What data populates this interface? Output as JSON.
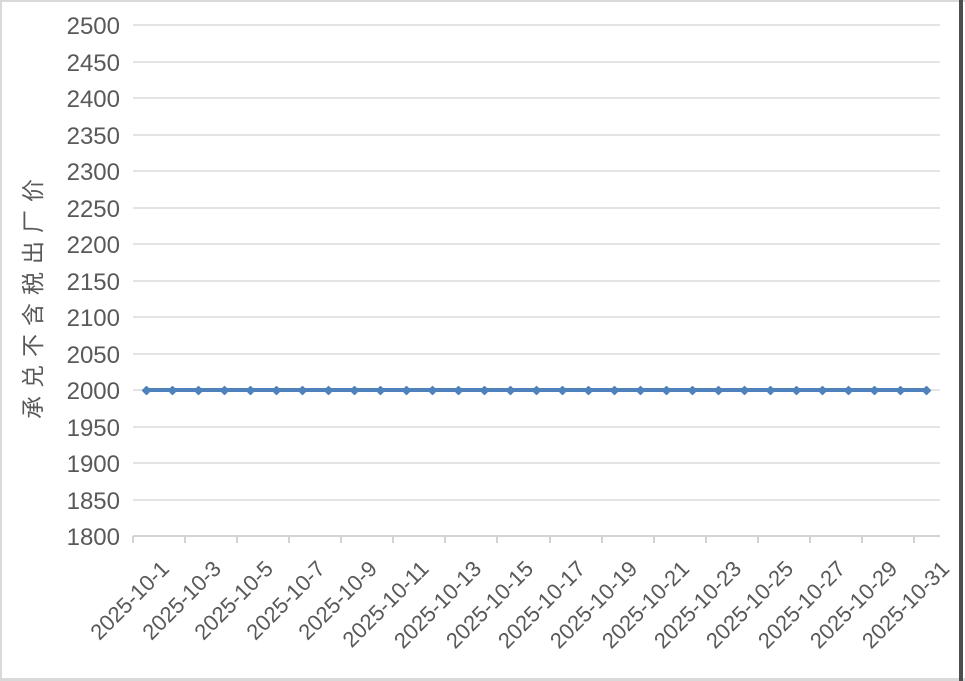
{
  "chart_data": {
    "type": "line",
    "title": "",
    "xlabel": "",
    "ylabel": "承兑不含税出厂价",
    "x": [
      "2025-10-1",
      "2025-10-2",
      "2025-10-3",
      "2025-10-4",
      "2025-10-5",
      "2025-10-6",
      "2025-10-7",
      "2025-10-8",
      "2025-10-9",
      "2025-10-10",
      "2025-10-11",
      "2025-10-12",
      "2025-10-13",
      "2025-10-14",
      "2025-10-15",
      "2025-10-16",
      "2025-10-17",
      "2025-10-18",
      "2025-10-19",
      "2025-10-20",
      "2025-10-21",
      "2025-10-22",
      "2025-10-23",
      "2025-10-24",
      "2025-10-25",
      "2025-10-26",
      "2025-10-27",
      "2025-10-28",
      "2025-10-29",
      "2025-10-30",
      "2025-10-31"
    ],
    "values": [
      2000,
      2000,
      2000,
      2000,
      2000,
      2000,
      2000,
      2000,
      2000,
      2000,
      2000,
      2000,
      2000,
      2000,
      2000,
      2000,
      2000,
      2000,
      2000,
      2000,
      2000,
      2000,
      2000,
      2000,
      2000,
      2000,
      2000,
      2000,
      2000,
      2000,
      2000
    ],
    "ylim": [
      1800,
      2500
    ],
    "yticks": [
      1800,
      1850,
      1900,
      1950,
      2000,
      2050,
      2100,
      2150,
      2200,
      2250,
      2300,
      2350,
      2400,
      2450,
      2500
    ],
    "xtick_labels": [
      "2025-10-1",
      "2025-10-3",
      "2025-10-5",
      "2025-10-7",
      "2025-10-9",
      "2025-10-11",
      "2025-10-13",
      "2025-10-15",
      "2025-10-17",
      "2025-10-19",
      "2025-10-21",
      "2025-10-23",
      "2025-10-25",
      "2025-10-27",
      "2025-10-29",
      "2025-10-31"
    ],
    "xtick_every": 2,
    "grid": true,
    "legend": "none",
    "marker": "square",
    "colors": {
      "line": "#4F81BD",
      "text": "#595959",
      "gridline": "#E4E4E4",
      "axis_line": "#D3D3D3",
      "background": "#FFFFFF",
      "frame_border_light": "#D9D9D9",
      "frame_border_dark": "#4E4E4E"
    }
  }
}
